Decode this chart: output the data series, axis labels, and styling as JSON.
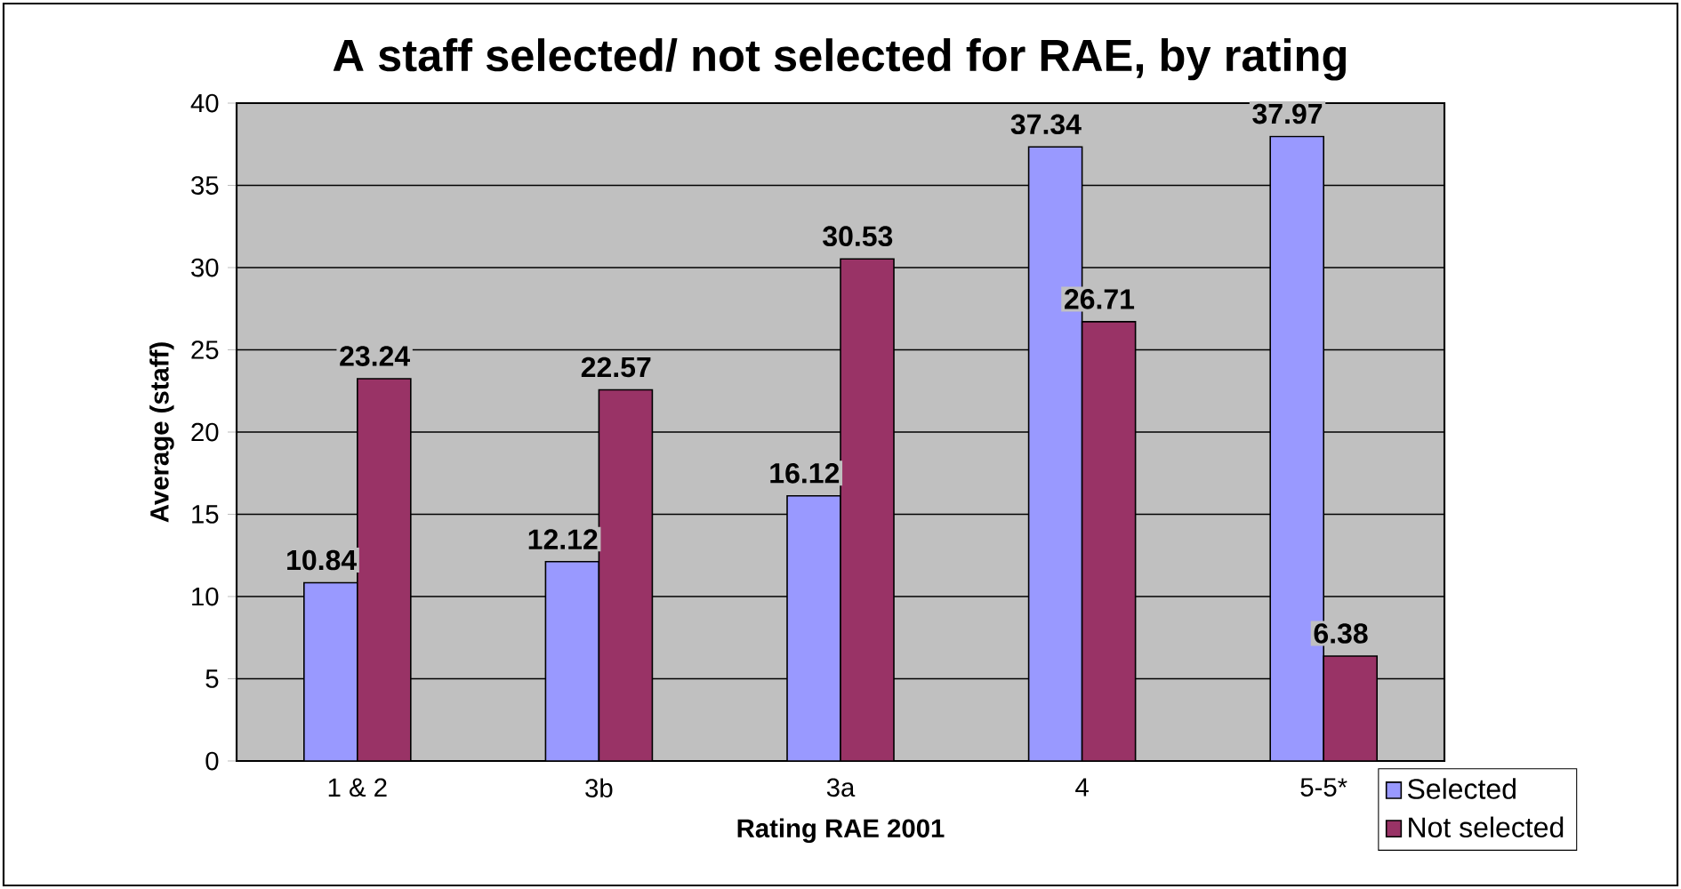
{
  "chart_data": {
    "type": "bar",
    "title": "A staff selected/ not selected for RAE, by rating",
    "xlabel": "Rating RAE 2001",
    "ylabel": "Average (staff)",
    "categories": [
      "1 & 2",
      "3b",
      "3a",
      "4",
      "5-5*"
    ],
    "series": [
      {
        "name": "Selected",
        "color": "#9999ff",
        "values": [
          10.84,
          12.12,
          16.12,
          37.34,
          37.97
        ]
      },
      {
        "name": "Not selected",
        "color": "#993366",
        "values": [
          23.24,
          22.57,
          30.53,
          26.71,
          6.38
        ]
      }
    ],
    "ylim": [
      0,
      40
    ],
    "yticks": [
      0,
      5,
      10,
      15,
      20,
      25,
      30,
      35,
      40
    ],
    "grid": "y",
    "legend": "bottom right",
    "data_labels": true
  }
}
